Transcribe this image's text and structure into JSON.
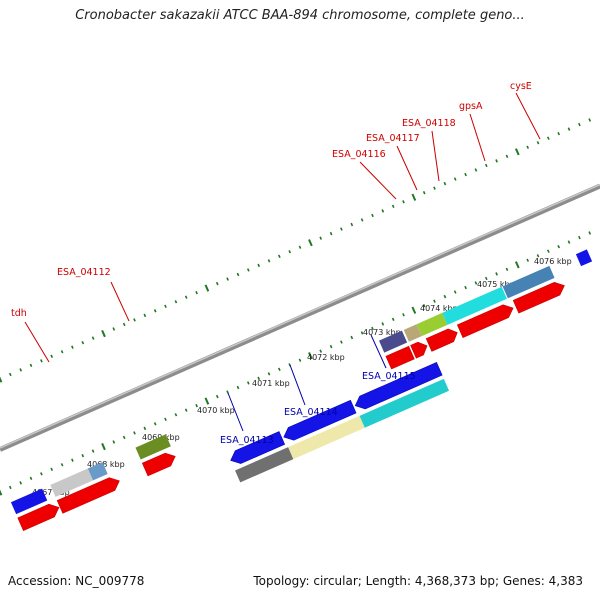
{
  "title": "Cronobacter sakazakii ATCC BAA-894 chromosome, complete geno...",
  "footer": {
    "accession": "Accession: NC_009778",
    "stats": "Topology: circular; Length: 4,368,373 bp; Genes: 4,383"
  },
  "colors": {
    "forward_label": "#cc0000",
    "reverse_label": "#0000aa",
    "backbone": "#8c8c8c",
    "ticks": "#227722"
  },
  "kbp_labels": [
    "4067 kbp",
    "4068 kbp",
    "4069 kbp",
    "4070 kbp",
    "4071 kbp",
    "4072 kbp",
    "4073 kbp",
    "4074 kbp",
    "4075 kbp",
    "4076 kbp"
  ],
  "forward_labels": [
    "tdh",
    "ESA_04112",
    "ESA_04116",
    "ESA_04117",
    "ESA_04118",
    "gpsA",
    "cysE"
  ],
  "reverse_labels": [
    "ESA_04113",
    "ESA_04114",
    "ESA_04115"
  ]
}
